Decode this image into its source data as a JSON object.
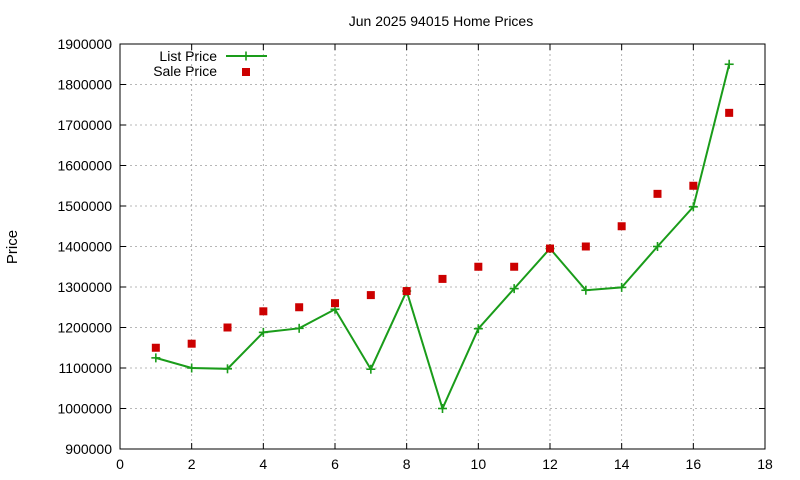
{
  "chart_data": {
    "type": "line",
    "title": "Jun 2025 94015 Home Prices",
    "xlabel": "",
    "ylabel": "Price",
    "xlim": [
      0,
      18
    ],
    "ylim": [
      900000,
      1900000
    ],
    "xticks": [
      0,
      2,
      4,
      6,
      8,
      10,
      12,
      14,
      16,
      18
    ],
    "yticks": [
      900000,
      1000000,
      1100000,
      1200000,
      1300000,
      1400000,
      1500000,
      1600000,
      1700000,
      1800000,
      1900000
    ],
    "grid": true,
    "legend_position": "top-left",
    "series": [
      {
        "name": "List Price",
        "style": "line+cross",
        "color": "#1a9c1a",
        "x": [
          1,
          2,
          3,
          4,
          5,
          6,
          7,
          8,
          9,
          10,
          11,
          12,
          13,
          14,
          15,
          16,
          17
        ],
        "y": [
          1125000,
          1100000,
          1098000,
          1188000,
          1198000,
          1245000,
          1097000,
          1290000,
          1000000,
          1197000,
          1296000,
          1395000,
          1292000,
          1299000,
          1400000,
          1498000,
          1850000
        ]
      },
      {
        "name": "Sale Price",
        "style": "square",
        "color": "#cc0000",
        "x": [
          1,
          2,
          3,
          4,
          5,
          6,
          7,
          8,
          9,
          10,
          11,
          12,
          13,
          14,
          15,
          16,
          17
        ],
        "y": [
          1150000,
          1160000,
          1200000,
          1240000,
          1250000,
          1260000,
          1280000,
          1290000,
          1320000,
          1350000,
          1350000,
          1395000,
          1400000,
          1450000,
          1530000,
          1550000,
          1730000
        ]
      }
    ]
  }
}
